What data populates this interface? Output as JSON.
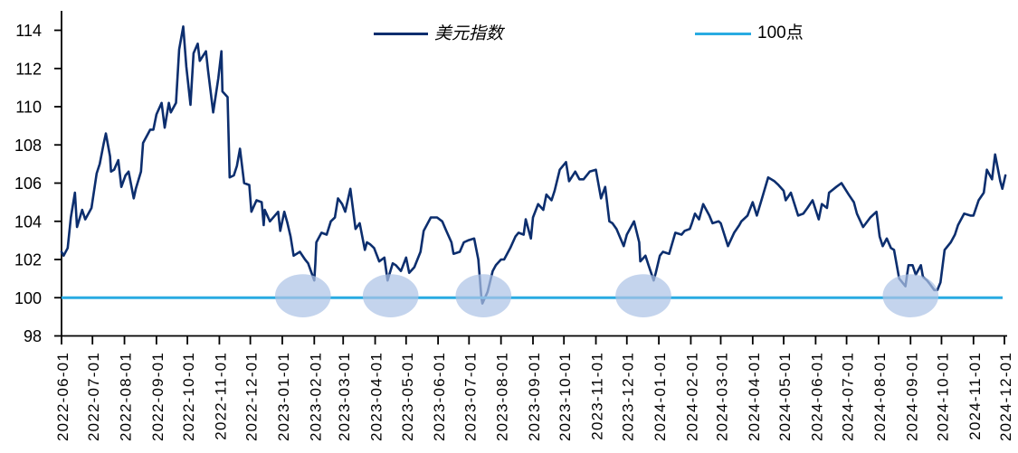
{
  "legend": {
    "items": [
      {
        "label": "美元指数",
        "color": "#0c2e6e"
      },
      {
        "label": "100点",
        "color": "#29abe2"
      }
    ]
  },
  "chart_data": {
    "type": "line",
    "title": "",
    "x_range": [
      "2022-06-01",
      "2024-12-01"
    ],
    "x_tick_labels": [
      "2022-06-01",
      "2022-07-01",
      "2022-08-01",
      "2022-09-01",
      "2022-10-01",
      "2022-11-01",
      "2022-12-01",
      "2023-01-01",
      "2023-02-01",
      "2023-03-01",
      "2023-04-01",
      "2023-05-01",
      "2023-06-01",
      "2023-07-01",
      "2023-08-01",
      "2023-09-01",
      "2023-10-01",
      "2023-11-01",
      "2023-12-01",
      "2024-01-01",
      "2024-02-01",
      "2024-03-01",
      "2024-04-01",
      "2024-05-01",
      "2024-06-01",
      "2024-07-01",
      "2024-08-01",
      "2024-09-01",
      "2024-10-01",
      "2024-11-01",
      "2024-12-01"
    ],
    "y_ticks": [
      98,
      100,
      102,
      104,
      106,
      108,
      110,
      112,
      114
    ],
    "ylim": [
      98,
      115.1
    ],
    "grid": false,
    "legend_position": "top-center",
    "series": [
      {
        "name": "美元指数",
        "type": "line",
        "color": "#0c2e6e",
        "points": [
          [
            "2022-06-01",
            102.4
          ],
          [
            "2022-06-03",
            102.2
          ],
          [
            "2022-06-07",
            102.6
          ],
          [
            "2022-06-10",
            104.2
          ],
          [
            "2022-06-14",
            105.5
          ],
          [
            "2022-06-16",
            103.7
          ],
          [
            "2022-06-21",
            104.6
          ],
          [
            "2022-06-24",
            104.1
          ],
          [
            "2022-06-28",
            104.5
          ],
          [
            "2022-06-30",
            104.7
          ],
          [
            "2022-07-05",
            106.5
          ],
          [
            "2022-07-08",
            107.0
          ],
          [
            "2022-07-12",
            108.1
          ],
          [
            "2022-07-14",
            108.6
          ],
          [
            "2022-07-18",
            107.4
          ],
          [
            "2022-07-19",
            106.6
          ],
          [
            "2022-07-22",
            106.7
          ],
          [
            "2022-07-26",
            107.2
          ],
          [
            "2022-07-29",
            105.8
          ],
          [
            "2022-08-02",
            106.4
          ],
          [
            "2022-08-05",
            106.6
          ],
          [
            "2022-08-10",
            105.2
          ],
          [
            "2022-08-12",
            105.7
          ],
          [
            "2022-08-17",
            106.6
          ],
          [
            "2022-08-19",
            108.1
          ],
          [
            "2022-08-23",
            108.5
          ],
          [
            "2022-08-26",
            108.8
          ],
          [
            "2022-08-29",
            108.8
          ],
          [
            "2022-09-01",
            109.6
          ],
          [
            "2022-09-06",
            110.2
          ],
          [
            "2022-09-09",
            108.9
          ],
          [
            "2022-09-13",
            110.2
          ],
          [
            "2022-09-15",
            109.7
          ],
          [
            "2022-09-20",
            110.2
          ],
          [
            "2022-09-23",
            113.0
          ],
          [
            "2022-09-27",
            114.2
          ],
          [
            "2022-09-30",
            112.1
          ],
          [
            "2022-10-04",
            110.1
          ],
          [
            "2022-10-07",
            112.8
          ],
          [
            "2022-10-11",
            113.3
          ],
          [
            "2022-10-13",
            112.4
          ],
          [
            "2022-10-19",
            112.9
          ],
          [
            "2022-10-21",
            111.9
          ],
          [
            "2022-10-26",
            109.7
          ],
          [
            "2022-10-31",
            111.5
          ],
          [
            "2022-11-03",
            112.9
          ],
          [
            "2022-11-04",
            110.8
          ],
          [
            "2022-11-09",
            110.5
          ],
          [
            "2022-11-11",
            106.3
          ],
          [
            "2022-11-15",
            106.4
          ],
          [
            "2022-11-18",
            106.9
          ],
          [
            "2022-11-21",
            107.8
          ],
          [
            "2022-11-25",
            106.0
          ],
          [
            "2022-11-30",
            105.9
          ],
          [
            "2022-12-02",
            104.5
          ],
          [
            "2022-12-07",
            105.1
          ],
          [
            "2022-12-12",
            105.0
          ],
          [
            "2022-12-14",
            103.8
          ],
          [
            "2022-12-15",
            104.6
          ],
          [
            "2022-12-20",
            104.0
          ],
          [
            "2022-12-28",
            104.5
          ],
          [
            "2022-12-30",
            103.5
          ],
          [
            "2023-01-03",
            104.5
          ],
          [
            "2023-01-06",
            103.9
          ],
          [
            "2023-01-09",
            103.2
          ],
          [
            "2023-01-12",
            102.2
          ],
          [
            "2023-01-18",
            102.4
          ],
          [
            "2023-01-23",
            102.0
          ],
          [
            "2023-01-26",
            101.8
          ],
          [
            "2023-02-01",
            100.9
          ],
          [
            "2023-02-02",
            101.8
          ],
          [
            "2023-02-03",
            102.9
          ],
          [
            "2023-02-08",
            103.4
          ],
          [
            "2023-02-13",
            103.3
          ],
          [
            "2023-02-17",
            104.0
          ],
          [
            "2023-02-21",
            104.2
          ],
          [
            "2023-02-24",
            105.2
          ],
          [
            "2023-02-28",
            104.9
          ],
          [
            "2023-03-03",
            104.5
          ],
          [
            "2023-03-08",
            105.7
          ],
          [
            "2023-03-13",
            103.6
          ],
          [
            "2023-03-17",
            103.9
          ],
          [
            "2023-03-22",
            102.5
          ],
          [
            "2023-03-24",
            102.9
          ],
          [
            "2023-03-27",
            102.8
          ],
          [
            "2023-03-31",
            102.6
          ],
          [
            "2023-04-05",
            101.9
          ],
          [
            "2023-04-10",
            102.1
          ],
          [
            "2023-04-13",
            100.9
          ],
          [
            "2023-04-18",
            101.8
          ],
          [
            "2023-04-21",
            101.7
          ],
          [
            "2023-04-26",
            101.4
          ],
          [
            "2023-05-01",
            102.1
          ],
          [
            "2023-05-04",
            101.3
          ],
          [
            "2023-05-09",
            101.6
          ],
          [
            "2023-05-15",
            102.4
          ],
          [
            "2023-05-18",
            103.5
          ],
          [
            "2023-05-25",
            104.2
          ],
          [
            "2023-05-31",
            104.2
          ],
          [
            "2023-06-05",
            104.0
          ],
          [
            "2023-06-09",
            103.5
          ],
          [
            "2023-06-14",
            102.9
          ],
          [
            "2023-06-16",
            102.3
          ],
          [
            "2023-06-22",
            102.4
          ],
          [
            "2023-06-26",
            102.9
          ],
          [
            "2023-06-30",
            103.0
          ],
          [
            "2023-07-06",
            103.1
          ],
          [
            "2023-07-10",
            102.0
          ],
          [
            "2023-07-13",
            100.0
          ],
          [
            "2023-07-14",
            99.7
          ],
          [
            "2023-07-19",
            100.3
          ],
          [
            "2023-07-24",
            101.4
          ],
          [
            "2023-07-27",
            101.7
          ],
          [
            "2023-08-01",
            102.0
          ],
          [
            "2023-08-04",
            102.0
          ],
          [
            "2023-08-10",
            102.6
          ],
          [
            "2023-08-15",
            103.2
          ],
          [
            "2023-08-18",
            103.4
          ],
          [
            "2023-08-23",
            103.3
          ],
          [
            "2023-08-25",
            104.1
          ],
          [
            "2023-08-30",
            103.1
          ],
          [
            "2023-09-01",
            104.2
          ],
          [
            "2023-09-06",
            104.9
          ],
          [
            "2023-09-11",
            104.6
          ],
          [
            "2023-09-14",
            105.4
          ],
          [
            "2023-09-19",
            105.1
          ],
          [
            "2023-09-22",
            105.6
          ],
          [
            "2023-09-27",
            106.7
          ],
          [
            "2023-10-03",
            107.1
          ],
          [
            "2023-10-06",
            106.1
          ],
          [
            "2023-10-12",
            106.6
          ],
          [
            "2023-10-16",
            106.2
          ],
          [
            "2023-10-20",
            106.2
          ],
          [
            "2023-10-26",
            106.6
          ],
          [
            "2023-11-01",
            106.7
          ],
          [
            "2023-11-06",
            105.2
          ],
          [
            "2023-11-10",
            105.8
          ],
          [
            "2023-11-14",
            104.0
          ],
          [
            "2023-11-17",
            103.9
          ],
          [
            "2023-11-21",
            103.6
          ],
          [
            "2023-11-28",
            102.7
          ],
          [
            "2023-12-01",
            103.3
          ],
          [
            "2023-12-08",
            104.0
          ],
          [
            "2023-12-13",
            102.9
          ],
          [
            "2023-12-14",
            101.9
          ],
          [
            "2023-12-19",
            102.2
          ],
          [
            "2023-12-22",
            101.7
          ],
          [
            "2023-12-27",
            100.9
          ],
          [
            "2023-12-29",
            101.3
          ],
          [
            "2024-01-02",
            102.2
          ],
          [
            "2024-01-05",
            102.4
          ],
          [
            "2024-01-11",
            102.3
          ],
          [
            "2024-01-17",
            103.4
          ],
          [
            "2024-01-23",
            103.3
          ],
          [
            "2024-01-26",
            103.5
          ],
          [
            "2024-01-31",
            103.6
          ],
          [
            "2024-02-02",
            103.9
          ],
          [
            "2024-02-05",
            104.4
          ],
          [
            "2024-02-09",
            104.1
          ],
          [
            "2024-02-13",
            104.9
          ],
          [
            "2024-02-19",
            104.3
          ],
          [
            "2024-02-22",
            103.9
          ],
          [
            "2024-02-28",
            104.0
          ],
          [
            "2024-03-01",
            103.9
          ],
          [
            "2024-03-08",
            102.7
          ],
          [
            "2024-03-14",
            103.4
          ],
          [
            "2024-03-19",
            103.8
          ],
          [
            "2024-03-21",
            104.0
          ],
          [
            "2024-03-27",
            104.3
          ],
          [
            "2024-04-01",
            105.0
          ],
          [
            "2024-04-05",
            104.3
          ],
          [
            "2024-04-10",
            105.2
          ],
          [
            "2024-04-16",
            106.3
          ],
          [
            "2024-04-22",
            106.1
          ],
          [
            "2024-04-26",
            105.9
          ],
          [
            "2024-05-01",
            105.6
          ],
          [
            "2024-05-03",
            105.1
          ],
          [
            "2024-05-08",
            105.5
          ],
          [
            "2024-05-15",
            104.3
          ],
          [
            "2024-05-20",
            104.4
          ],
          [
            "2024-05-24",
            104.7
          ],
          [
            "2024-05-29",
            105.1
          ],
          [
            "2024-06-04",
            104.1
          ],
          [
            "2024-06-07",
            104.9
          ],
          [
            "2024-06-12",
            104.7
          ],
          [
            "2024-06-14",
            105.5
          ],
          [
            "2024-06-21",
            105.8
          ],
          [
            "2024-06-26",
            106.0
          ],
          [
            "2024-07-03",
            105.4
          ],
          [
            "2024-07-08",
            105.0
          ],
          [
            "2024-07-11",
            104.4
          ],
          [
            "2024-07-17",
            103.7
          ],
          [
            "2024-07-24",
            104.2
          ],
          [
            "2024-07-30",
            104.5
          ],
          [
            "2024-08-02",
            103.2
          ],
          [
            "2024-08-05",
            102.7
          ],
          [
            "2024-08-09",
            103.1
          ],
          [
            "2024-08-13",
            102.6
          ],
          [
            "2024-08-16",
            102.5
          ],
          [
            "2024-08-21",
            101.0
          ],
          [
            "2024-08-27",
            100.6
          ],
          [
            "2024-08-30",
            101.7
          ],
          [
            "2024-09-03",
            101.7
          ],
          [
            "2024-09-06",
            101.2
          ],
          [
            "2024-09-11",
            101.7
          ],
          [
            "2024-09-13",
            101.1
          ],
          [
            "2024-09-17",
            100.9
          ],
          [
            "2024-09-20",
            100.7
          ],
          [
            "2024-09-24",
            100.4
          ],
          [
            "2024-09-27",
            100.4
          ],
          [
            "2024-09-30",
            100.8
          ],
          [
            "2024-10-04",
            102.5
          ],
          [
            "2024-10-10",
            102.9
          ],
          [
            "2024-10-14",
            103.3
          ],
          [
            "2024-10-17",
            103.8
          ],
          [
            "2024-10-23",
            104.4
          ],
          [
            "2024-10-29",
            104.3
          ],
          [
            "2024-11-01",
            104.3
          ],
          [
            "2024-11-06",
            105.1
          ],
          [
            "2024-11-11",
            105.5
          ],
          [
            "2024-11-14",
            106.7
          ],
          [
            "2024-11-19",
            106.2
          ],
          [
            "2024-11-22",
            107.5
          ],
          [
            "2024-11-27",
            106.1
          ],
          [
            "2024-11-29",
            105.7
          ],
          [
            "2024-12-02",
            106.4
          ]
        ]
      },
      {
        "name": "100点",
        "type": "hline",
        "color": "#29abe2",
        "value": 100
      }
    ],
    "highlights": {
      "shape": "ellipse",
      "fill": "#adc4e6",
      "opacity": 0.72,
      "rx_days": 27,
      "ry_units": 1.13,
      "items": [
        {
          "date": "2023-01-21",
          "value": 100.1
        },
        {
          "date": "2023-04-16",
          "value": 100.1
        },
        {
          "date": "2023-07-15",
          "value": 100.1
        },
        {
          "date": "2023-12-17",
          "value": 100.1
        },
        {
          "date": "2024-09-01",
          "value": 100.1
        }
      ]
    }
  }
}
